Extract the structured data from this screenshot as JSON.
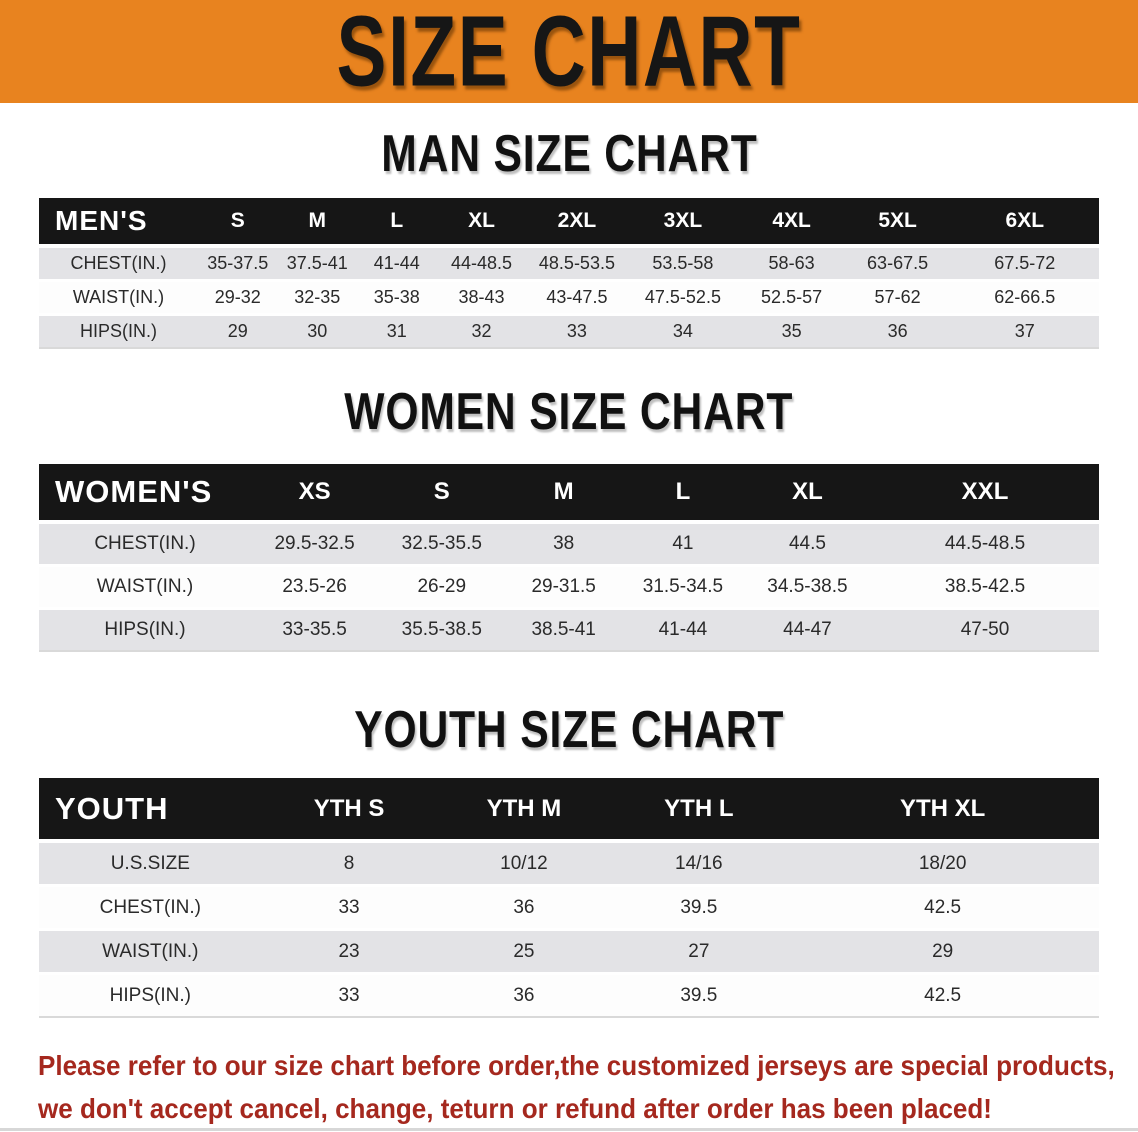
{
  "banner": {
    "title": "SIZE CHART"
  },
  "colors": {
    "banner_bg": "#E8831F",
    "header_bg": "#161616",
    "stripe": "#E3E3E6",
    "notice_color": "#A5281E"
  },
  "sections": [
    {
      "title": "MAN SIZE CHART",
      "table": {
        "label": "MEN'S",
        "columns": [
          "S",
          "M",
          "L",
          "XL",
          "2XL",
          "3XL",
          "4XL",
          "5XL",
          "6XL"
        ],
        "rows": [
          {
            "label": "CHEST(IN.)",
            "values": [
              "35-37.5",
              "37.5-41",
              "41-44",
              "44-48.5",
              "48.5-53.5",
              "53.5-58",
              "58-63",
              "63-67.5",
              "67.5-72"
            ]
          },
          {
            "label": "WAIST(IN.)",
            "values": [
              "29-32",
              "32-35",
              "35-38",
              "38-43",
              "43-47.5",
              "47.5-52.5",
              "52.5-57",
              "57-62",
              "62-66.5"
            ]
          },
          {
            "label": "HIPS(IN.)",
            "values": [
              "29",
              "30",
              "31",
              "32",
              "33",
              "34",
              "35",
              "36",
              "37"
            ]
          }
        ]
      }
    },
    {
      "title": "WOMEN SIZE CHART",
      "table": {
        "label": "WOMEN'S",
        "columns": [
          "XS",
          "S",
          "M",
          "L",
          "XL",
          "XXL"
        ],
        "rows": [
          {
            "label": "CHEST(IN.)",
            "values": [
              "29.5-32.5",
              "32.5-35.5",
              "38",
              "41",
              "44.5",
              "44.5-48.5"
            ]
          },
          {
            "label": "WAIST(IN.)",
            "values": [
              "23.5-26",
              "26-29",
              "29-31.5",
              "31.5-34.5",
              "34.5-38.5",
              "38.5-42.5"
            ]
          },
          {
            "label": "HIPS(IN.)",
            "values": [
              "33-35.5",
              "35.5-38.5",
              "38.5-41",
              "41-44",
              "44-47",
              "47-50"
            ]
          }
        ]
      }
    },
    {
      "title": "YOUTH SIZE CHART",
      "table": {
        "label": "YOUTH",
        "columns": [
          "YTH S",
          "YTH M",
          "YTH L",
          "YTH XL"
        ],
        "rows": [
          {
            "label": "U.S.SIZE",
            "values": [
              "8",
              "10/12",
              "14/16",
              "18/20"
            ]
          },
          {
            "label": "CHEST(IN.)",
            "values": [
              "33",
              "36",
              "39.5",
              "42.5"
            ]
          },
          {
            "label": "WAIST(IN.)",
            "values": [
              "23",
              "25",
              "27",
              "29"
            ]
          },
          {
            "label": "HIPS(IN.)",
            "values": [
              "33",
              "36",
              "39.5",
              "42.5"
            ]
          }
        ]
      }
    }
  ],
  "footer": {
    "line1": "Please refer to our size chart before order,the customized jerseys are special products,",
    "line2": "we don't accept cancel, change, teturn or refund after order has been placed!"
  }
}
